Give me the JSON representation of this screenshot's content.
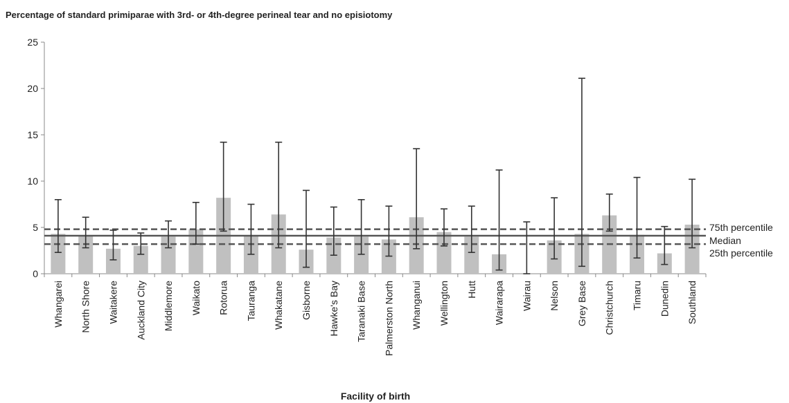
{
  "chart_data": {
    "type": "bar",
    "title": "Percentage of standard primiparae with 3rd- or 4th-degree perineal tear and no episiotomy",
    "xlabel": "Facility of birth",
    "ylabel": "",
    "ylim": [
      0,
      25
    ],
    "yticks": [
      0,
      5,
      10,
      15,
      20,
      25
    ],
    "grid": false,
    "bar_color": "#c0c0c0",
    "errorbar_color": "#333333",
    "categories": [
      "Whangarei",
      "North Shore",
      "Waitakere",
      "Auckland City",
      "Middlemore",
      "Waikato",
      "Rotorua",
      "Tauranga",
      "Whakatane",
      "Gisborne",
      "Hawke's Bay",
      "Taranaki Base",
      "Palmerston North",
      "Whanganui",
      "Wellington",
      "Hutt",
      "Wairarapa",
      "Wairau",
      "Nelson",
      "Grey Base",
      "Christchurch",
      "Timaru",
      "Dunedin",
      "Southland"
    ],
    "values": [
      4.3,
      4.1,
      2.7,
      3.0,
      4.0,
      4.8,
      8.2,
      4.1,
      6.4,
      2.6,
      3.9,
      4.0,
      3.7,
      6.1,
      4.5,
      4.0,
      2.1,
      0.0,
      3.6,
      4.3,
      6.3,
      4.2,
      2.2,
      5.3
    ],
    "error_low": [
      2.3,
      2.8,
      1.5,
      2.1,
      2.8,
      3.2,
      4.6,
      2.1,
      2.8,
      0.7,
      2.0,
      2.1,
      1.9,
      2.7,
      3.0,
      2.3,
      0.4,
      0.0,
      1.6,
      0.8,
      4.6,
      1.7,
      1.0,
      2.8
    ],
    "error_high": [
      8.0,
      6.1,
      4.7,
      4.4,
      5.7,
      7.7,
      14.2,
      7.5,
      14.2,
      9.0,
      7.2,
      8.0,
      7.3,
      13.5,
      7.0,
      7.3,
      11.2,
      5.6,
      8.2,
      21.1,
      8.6,
      10.4,
      5.1,
      10.2
    ],
    "reference_lines": [
      {
        "name": "75th percentile",
        "value": 4.8,
        "style": "dashed"
      },
      {
        "name": "Median",
        "value": 4.1,
        "style": "solid"
      },
      {
        "name": "25th percentile",
        "value": 3.2,
        "style": "dashed"
      }
    ],
    "reference_color": "#555555"
  }
}
